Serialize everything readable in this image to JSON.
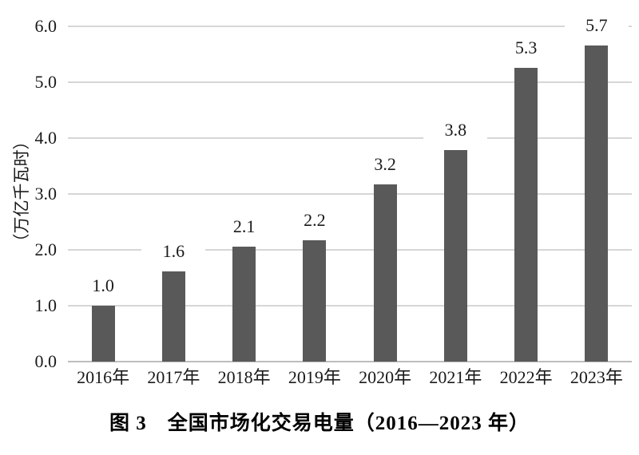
{
  "figure": {
    "caption": "图 3　全国市场化交易电量（2016—2023 年）"
  },
  "chart_data": {
    "type": "bar",
    "title": "图 3　全国市场化交易电量（2016—2023 年）",
    "categories": [
      "2016年",
      "2017年",
      "2018年",
      "2019年",
      "2020年",
      "2021年",
      "2022年",
      "2023年"
    ],
    "values": [
      1.0,
      1.6,
      2.1,
      2.2,
      3.2,
      3.8,
      5.3,
      5.7
    ],
    "value_labels": [
      "1.0",
      "1.6",
      "2.1",
      "2.2",
      "3.2",
      "3.8",
      "5.3",
      "5.7"
    ],
    "plotted_values": [
      1.0,
      1.62,
      2.05,
      2.17,
      3.17,
      3.79,
      5.26,
      5.66
    ],
    "xlabel": "",
    "ylabel": "（万亿千瓦时）",
    "ylim": [
      0,
      6
    ],
    "ytick_step": 1.0,
    "ytick_labels": [
      "0.0",
      "1.0",
      "2.0",
      "3.0",
      "4.0",
      "5.0",
      "6.0"
    ],
    "grid": "horizontal",
    "legend": "none",
    "bar_color": "#595959",
    "gridline_color": "#d6d6d6",
    "axisline_color": "#bdbdbd",
    "text_color": "#1a1a1a"
  }
}
